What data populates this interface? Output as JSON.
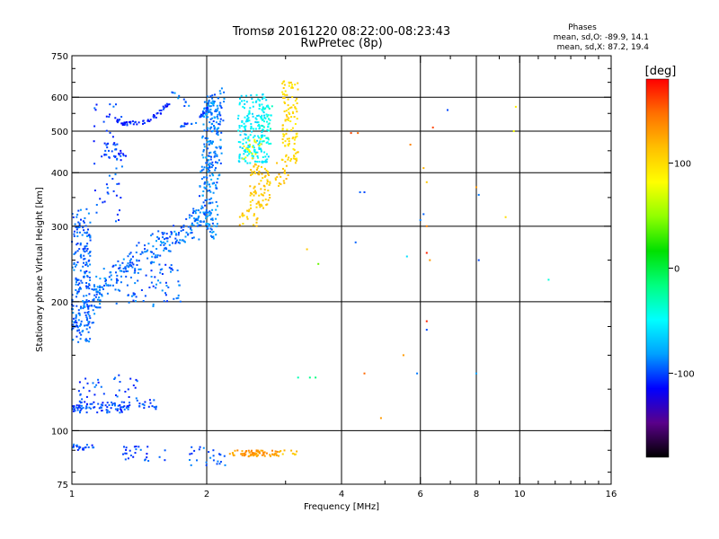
{
  "chart_data": {
    "type": "scatter",
    "title": "Tromsø 20161220 08:22:00-08:23:43",
    "subtitle": "RwPretec (8p)",
    "stats": {
      "heading": "Phases",
      "line1": "mean, sd,O: -89.9, 14.1",
      "line2": "mean, sd,X:  87.2, 19.4"
    },
    "xlabel": "Frequency [MHz]",
    "ylabel": "Stationary phase Virtual Height [km]",
    "x_scale": "log",
    "y_scale": "log",
    "xlim": [
      1,
      16
    ],
    "ylim": [
      75,
      750
    ],
    "x_ticks": [
      1,
      2,
      4,
      6,
      8,
      10,
      16
    ],
    "x_tick_labels": [
      "1",
      "2",
      "4",
      "6",
      "8",
      "10",
      "16"
    ],
    "x_minor_ticks": [
      3,
      5,
      7,
      9,
      11,
      12,
      13,
      14,
      15
    ],
    "y_ticks": [
      75,
      100,
      200,
      300,
      400,
      500,
      600,
      750
    ],
    "y_tick_labels": [
      "75",
      "100",
      "200",
      "300",
      "400",
      "500",
      "600",
      "750"
    ],
    "y_minor_ticks": [
      80,
      90,
      125,
      150,
      175,
      250,
      350,
      450,
      550,
      650,
      700
    ],
    "grid_x": [
      2,
      4,
      6,
      8,
      10
    ],
    "grid_y": [
      100,
      200,
      300,
      400,
      500,
      600
    ],
    "colorbar": {
      "label": "[deg]",
      "min": -180,
      "max": 180,
      "ticks": [
        100,
        0,
        -100
      ],
      "tick_labels": [
        "100",
        "0",
        "-100"
      ],
      "colormap": [
        "#000000",
        "#5a008a",
        "#0000ff",
        "#00a0ff",
        "#00ffff",
        "#00ff80",
        "#00e000",
        "#90ff00",
        "#ffff00",
        "#ffc000",
        "#ff7000",
        "#ff0000"
      ]
    },
    "clusters": [
      {
        "type": "band",
        "x": [
          1.0,
          1.1
        ],
        "y": [
          160,
          330
        ],
        "n": 200,
        "phase": -95
      },
      {
        "type": "curve",
        "pts": [
          [
            1.03,
            175
          ],
          [
            1.1,
            200
          ],
          [
            1.2,
            220
          ],
          [
            1.35,
            245
          ],
          [
            1.5,
            265
          ],
          [
            1.7,
            285
          ],
          [
            1.9,
            300
          ],
          [
            2.0,
            330
          ],
          [
            2.05,
            420
          ],
          [
            2.08,
            520
          ],
          [
            2.1,
            620
          ]
        ],
        "spread": 0.12,
        "n": 420,
        "phase": -92
      },
      {
        "type": "band",
        "x": [
          1.22,
          1.75
        ],
        "y": [
          195,
          245
        ],
        "n": 80,
        "phase": -95
      },
      {
        "type": "band",
        "x": [
          1.95,
          2.12
        ],
        "y": [
          280,
          600
        ],
        "n": 140,
        "phase": -85
      },
      {
        "type": "band",
        "x": [
          1.12,
          1.3
        ],
        "y": [
          300,
          600
        ],
        "n": 45,
        "phase": -100
      },
      {
        "type": "band",
        "x": [
          1.16,
          1.32
        ],
        "y": [
          430,
          470
        ],
        "n": 28,
        "phase": -105
      },
      {
        "type": "curve",
        "pts": [
          [
            1.2,
            545
          ],
          [
            1.3,
            520
          ],
          [
            1.45,
            525
          ],
          [
            1.55,
            545
          ],
          [
            1.65,
            580
          ]
        ],
        "spread": 0.02,
        "n": 60,
        "phase": -108
      },
      {
        "type": "curve",
        "pts": [
          [
            1.75,
            515
          ],
          [
            1.85,
            520
          ],
          [
            1.95,
            545
          ],
          [
            2.0,
            565
          ]
        ],
        "spread": 0.02,
        "n": 30,
        "phase": -100
      },
      {
        "type": "band",
        "x": [
          1.65,
          1.85
        ],
        "y": [
          570,
          620
        ],
        "n": 10,
        "phase": -90
      },
      {
        "type": "band",
        "x": [
          2.35,
          2.75
        ],
        "y": [
          420,
          610
        ],
        "n": 200,
        "phase": -55
      },
      {
        "type": "band",
        "x": [
          2.65,
          2.8
        ],
        "y": [
          460,
          580
        ],
        "n": 30,
        "phase": -40
      },
      {
        "type": "band",
        "x": [
          2.4,
          2.65
        ],
        "y": [
          430,
          480
        ],
        "n": 20,
        "phase": 80
      },
      {
        "type": "band",
        "x": [
          2.5,
          2.78
        ],
        "y": [
          330,
          420
        ],
        "n": 80,
        "phase": 110
      },
      {
        "type": "band",
        "x": [
          2.35,
          2.6
        ],
        "y": [
          300,
          330
        ],
        "n": 20,
        "phase": 110
      },
      {
        "type": "band",
        "x": [
          2.95,
          3.2
        ],
        "y": [
          420,
          660
        ],
        "n": 110,
        "phase": 100
      },
      {
        "type": "band",
        "x": [
          2.85,
          3.05
        ],
        "y": [
          370,
          440
        ],
        "n": 20,
        "phase": 110
      },
      {
        "type": "band",
        "x": [
          1.0,
          1.35
        ],
        "y": [
          110,
          117
        ],
        "n": 90,
        "phase": -100
      },
      {
        "type": "band",
        "x": [
          1.03,
          1.4
        ],
        "y": [
          117,
          135
        ],
        "n": 35,
        "phase": -100
      },
      {
        "type": "band",
        "x": [
          1.4,
          1.55
        ],
        "y": [
          112,
          118
        ],
        "n": 18,
        "phase": -100
      },
      {
        "type": "band",
        "x": [
          1.0,
          1.12
        ],
        "y": [
          90,
          93
        ],
        "n": 20,
        "phase": -100
      },
      {
        "type": "band",
        "x": [
          1.3,
          1.62
        ],
        "y": [
          85,
          92
        ],
        "n": 26,
        "phase": -100
      },
      {
        "type": "band",
        "x": [
          1.82,
          2.15
        ],
        "y": [
          82,
          92
        ],
        "n": 18,
        "phase": -95
      },
      {
        "type": "band",
        "x": [
          2.25,
          2.9
        ],
        "y": [
          87,
          90
        ],
        "n": 70,
        "phase": 130
      },
      {
        "type": "band",
        "x": [
          2.9,
          3.2
        ],
        "y": [
          87,
          90
        ],
        "n": 10,
        "phase": 110
      },
      {
        "type": "band",
        "x": [
          2.1,
          2.2
        ],
        "y": [
          82,
          90
        ],
        "n": 8,
        "phase": -95
      }
    ],
    "points": [
      [
        4.35,
        495,
        150
      ],
      [
        5.7,
        465,
        140
      ],
      [
        6.4,
        510,
        160
      ],
      [
        6.9,
        560,
        -100
      ],
      [
        6.1,
        410,
        120
      ],
      [
        6.2,
        380,
        110
      ],
      [
        4.5,
        360,
        -100
      ],
      [
        6.1,
        320,
        -95
      ],
      [
        6.2,
        300,
        140
      ],
      [
        6.0,
        310,
        -90
      ],
      [
        4.3,
        275,
        -95
      ],
      [
        5.6,
        255,
        -60
      ],
      [
        6.2,
        260,
        170
      ],
      [
        8.1,
        250,
        -100
      ],
      [
        8.0,
        370,
        130
      ],
      [
        8.1,
        355,
        -90
      ],
      [
        9.3,
        315,
        100
      ],
      [
        9.8,
        570,
        90
      ],
      [
        9.7,
        500,
        80
      ],
      [
        11.6,
        225,
        -40
      ],
      [
        6.2,
        180,
        170
      ],
      [
        6.2,
        172,
        -100
      ],
      [
        3.55,
        245,
        40
      ],
      [
        3.35,
        265,
        110
      ],
      [
        3.2,
        133,
        -30
      ],
      [
        3.4,
        133,
        -20
      ],
      [
        3.5,
        133,
        -15
      ],
      [
        4.5,
        136,
        150
      ],
      [
        5.9,
        136,
        -90
      ],
      [
        8.0,
        136,
        -80
      ],
      [
        4.9,
        107,
        130
      ],
      [
        6.3,
        250,
        130
      ],
      [
        4.4,
        360,
        -95
      ],
      [
        4.2,
        495,
        160
      ],
      [
        5.5,
        150,
        130
      ]
    ]
  }
}
